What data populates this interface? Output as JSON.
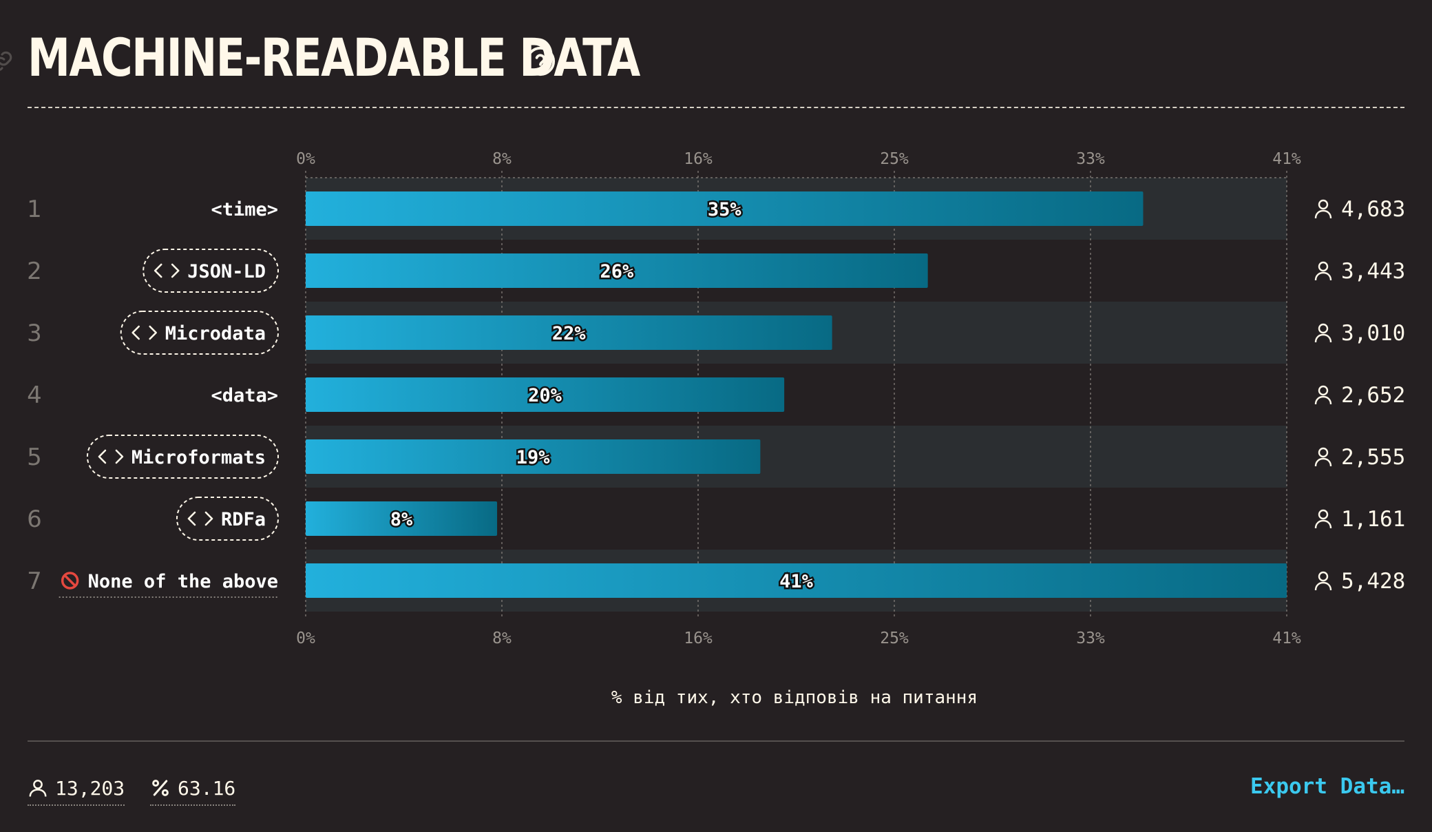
{
  "title": "MACHINE-READABLE DATA",
  "icons": {
    "link": "link-icon",
    "help": "question-circle-icon",
    "user": "user-icon",
    "percent": "percent-icon",
    "none": "prohibited-icon",
    "code": "code-icon"
  },
  "colors": {
    "background": "#252022",
    "bar_start": "#22b0dc",
    "bar_end": "#086a84",
    "stripe": "#2b2e31",
    "text": "#fff8ea",
    "accent": "#3bc9ef"
  },
  "chart_data": {
    "type": "bar",
    "orientation": "horizontal",
    "categories": [
      "<time>",
      "JSON-LD",
      "Microdata",
      "<data>",
      "Microformats",
      "RDFa",
      "None of the above"
    ],
    "ranks": [
      "1",
      "2",
      "3",
      "4",
      "5",
      "6",
      "7"
    ],
    "code_badge": [
      false,
      true,
      true,
      false,
      true,
      true,
      false
    ],
    "values": [
      35,
      26,
      22,
      20,
      19,
      8,
      41
    ],
    "value_labels": [
      "35%",
      "26%",
      "22%",
      "20%",
      "19%",
      "8%",
      "41%"
    ],
    "counts": [
      "4,683",
      "3,443",
      "3,010",
      "2,652",
      "2,555",
      "1,161",
      "5,428"
    ],
    "xlim": [
      0,
      41
    ],
    "x_ticks": [
      0,
      8.2,
      16.4,
      24.6,
      32.8,
      41
    ],
    "x_tick_labels": [
      "0%",
      "8%",
      "16%",
      "25%",
      "33%",
      "41%"
    ],
    "xlabel": "% від тих, хто відповів на питання",
    "grid": true
  },
  "footer": {
    "respondents": "13,203",
    "rate": "63.16",
    "export_label": "Export Data…"
  }
}
